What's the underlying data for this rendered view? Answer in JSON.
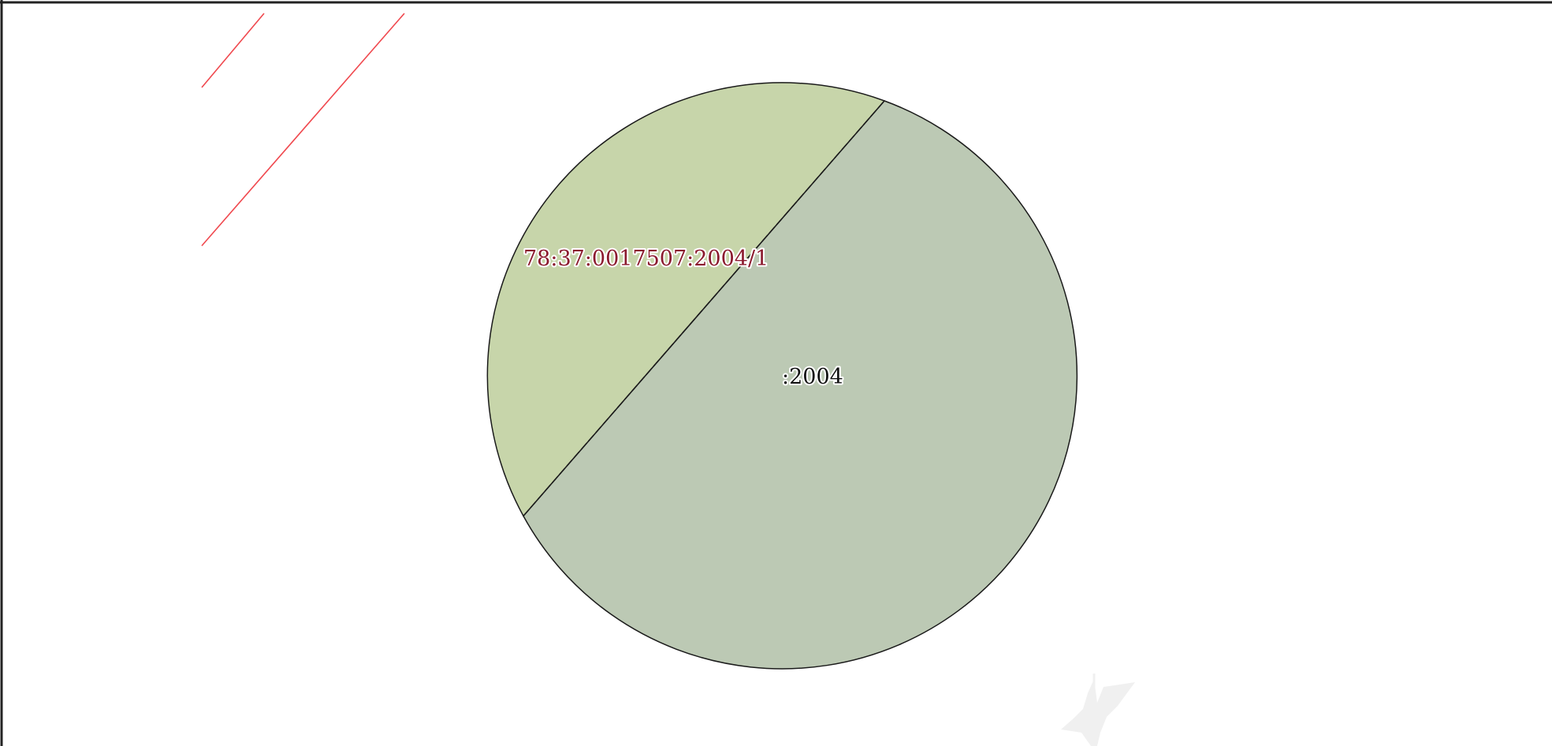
{
  "map": {
    "parcels": [
      {
        "id": "78:37:0017507:2004/1",
        "label": "78:37:0017507:2004/1",
        "fill": "#c7d5aa",
        "label_color": "#8b1a2e"
      },
      {
        "id": ":2004",
        "label": ":2004",
        "fill": "#bcc9b4",
        "label_color": "#111111"
      }
    ],
    "colors": {
      "background": "#ffffff",
      "parcel_border": "#1a1a1a",
      "frame_border": "#222222",
      "red_lines": "#f0484e",
      "watermark": "#e4e4e4"
    },
    "watermark_icon": "eagle-emblem-icon"
  }
}
